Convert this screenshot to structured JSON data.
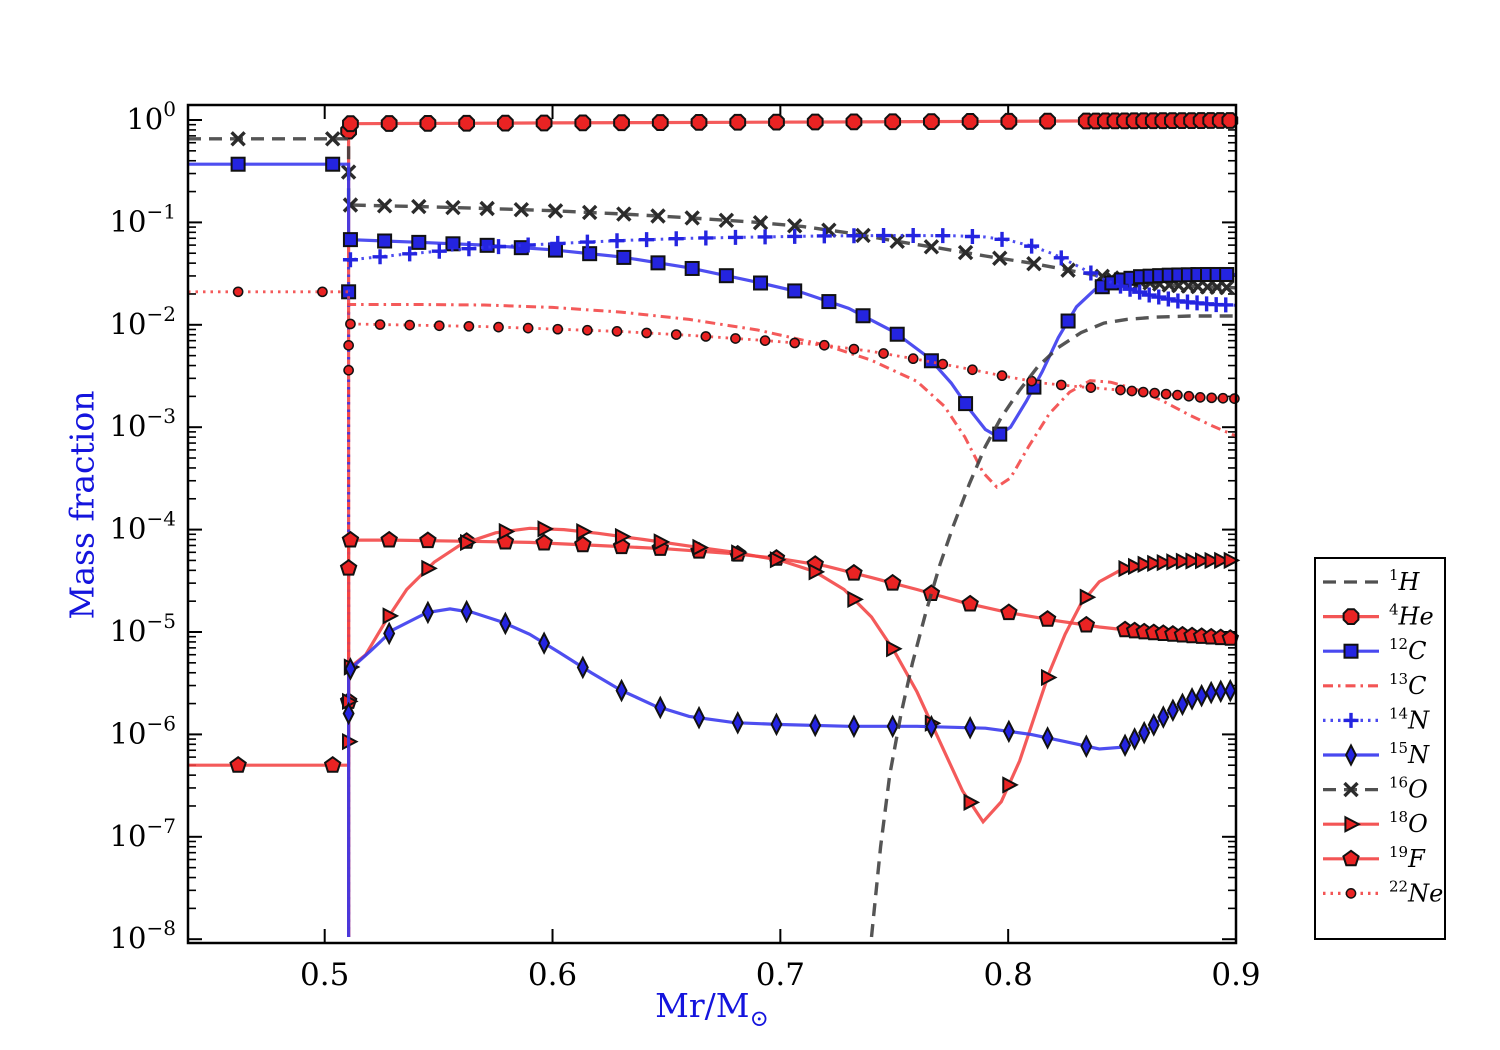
{
  "chart_data": {
    "type": "line",
    "title": "",
    "xlabel_main": "Mr/M",
    "xlabel_sub": "⊙",
    "ylabel": "Mass fraction",
    "label_color": "#1414dd",
    "grid": false,
    "legend_position": "right-outside",
    "x_range": [
      0.44,
      0.9
    ],
    "y_log_range": [
      -8,
      0.146
    ],
    "jump_x": 0.5105,
    "x_ticks": [
      {
        "v": 0.5,
        "label": "0.5"
      },
      {
        "v": 0.6,
        "label": "0.6"
      },
      {
        "v": 0.7,
        "label": "0.7"
      },
      {
        "v": 0.8,
        "label": "0.8"
      },
      {
        "v": 0.9,
        "label": "0.9"
      }
    ],
    "y_tick_exponents": [
      0,
      -1,
      -2,
      -3,
      -4,
      -5,
      -6,
      -7,
      -8
    ],
    "draw_order": [
      "He4",
      "O16",
      "C12",
      "C13",
      "N14",
      "Ne22",
      "F19",
      "O18",
      "N15",
      "H1"
    ],
    "series": [
      {
        "id": "H1",
        "legend_sup": "1",
        "legend_sym": "H",
        "color": "#3d3d3d",
        "marker_color": "#3d3d3d",
        "style": "dashed",
        "marker": "none",
        "width": 3.4,
        "points": [
          [
            0.74,
            1.05e-08
          ],
          [
            0.744,
            8e-08
          ],
          [
            0.748,
            4e-07
          ],
          [
            0.753,
            1.6e-06
          ],
          [
            0.758,
            5e-06
          ],
          [
            0.764,
            1.6e-05
          ],
          [
            0.77,
            4.5e-05
          ],
          [
            0.776,
            0.00011
          ],
          [
            0.783,
            0.00028
          ],
          [
            0.79,
            0.00065
          ],
          [
            0.797,
            0.00125
          ],
          [
            0.805,
            0.0023
          ],
          [
            0.813,
            0.0039
          ],
          [
            0.822,
            0.006
          ],
          [
            0.832,
            0.0084
          ],
          [
            0.842,
            0.0104
          ],
          [
            0.852,
            0.0113
          ],
          [
            0.865,
            0.0119
          ],
          [
            0.88,
            0.0122
          ],
          [
            0.9,
            0.0122
          ]
        ]
      },
      {
        "id": "He4",
        "legend_sup": "4",
        "legend_sym": "He",
        "color": "#f24343",
        "marker_color": "#ea2323",
        "style": "solid",
        "marker": "octagon",
        "width": 3.2,
        "marker_from": 0.5113,
        "marker_spacing": 0.017,
        "dense_from": 0.828,
        "dense_spacing": 0.0042,
        "jump_markers": [
          0.78
        ],
        "points": [
          [
            0.5105,
            1.05e-08
          ],
          [
            0.5105,
            0.92
          ],
          [
            0.53,
            0.924
          ],
          [
            0.56,
            0.929
          ],
          [
            0.6,
            0.936
          ],
          [
            0.64,
            0.943
          ],
          [
            0.68,
            0.95
          ],
          [
            0.72,
            0.957
          ],
          [
            0.76,
            0.964
          ],
          [
            0.8,
            0.971
          ],
          [
            0.84,
            0.979
          ],
          [
            0.87,
            0.985
          ],
          [
            0.9,
            0.99
          ]
        ]
      },
      {
        "id": "C12",
        "legend_sup": "12",
        "legend_sym": "C",
        "color": "#3535ee",
        "marker_color": "#2424e0",
        "style": "solid",
        "marker": "square",
        "width": 3.2,
        "marker_from": 0.5113,
        "marker_spacing": 0.015,
        "dense_from": 0.838,
        "dense_spacing": 0.0042,
        "left_markers": [
          0.462,
          0.5035
        ],
        "jump_markers": [
          0.021
        ],
        "points": [
          [
            0.44,
            0.37
          ],
          [
            0.5105,
            0.37
          ],
          [
            0.5105,
            0.068
          ],
          [
            0.54,
            0.064
          ],
          [
            0.57,
            0.06
          ],
          [
            0.6,
            0.054
          ],
          [
            0.63,
            0.046
          ],
          [
            0.66,
            0.036
          ],
          [
            0.69,
            0.026
          ],
          [
            0.71,
            0.0205
          ],
          [
            0.73,
            0.0145
          ],
          [
            0.75,
            0.0085
          ],
          [
            0.765,
            0.0048
          ],
          [
            0.775,
            0.0027
          ],
          [
            0.783,
            0.0015
          ],
          [
            0.79,
            0.00095
          ],
          [
            0.795,
            0.00082
          ],
          [
            0.801,
            0.001
          ],
          [
            0.808,
            0.0018
          ],
          [
            0.815,
            0.0035
          ],
          [
            0.822,
            0.0075
          ],
          [
            0.83,
            0.015
          ],
          [
            0.838,
            0.022
          ],
          [
            0.848,
            0.027
          ],
          [
            0.858,
            0.0295
          ],
          [
            0.87,
            0.0305
          ],
          [
            0.885,
            0.031
          ],
          [
            0.9,
            0.031
          ]
        ]
      },
      {
        "id": "C13",
        "legend_sup": "13",
        "legend_sym": "C",
        "color": "#f24343",
        "marker_color": "#ea2323",
        "style": "dashdot",
        "marker": "none",
        "width": 3.0,
        "points": [
          [
            0.5105,
            1.05e-08
          ],
          [
            0.5105,
            0.0158
          ],
          [
            0.54,
            0.0158
          ],
          [
            0.57,
            0.0156
          ],
          [
            0.6,
            0.0148
          ],
          [
            0.63,
            0.0133
          ],
          [
            0.66,
            0.0113
          ],
          [
            0.69,
            0.0089
          ],
          [
            0.72,
            0.0063
          ],
          [
            0.74,
            0.0045
          ],
          [
            0.76,
            0.0028
          ],
          [
            0.772,
            0.0016
          ],
          [
            0.781,
            0.0008
          ],
          [
            0.789,
            0.00036
          ],
          [
            0.795,
            0.00026
          ],
          [
            0.801,
            0.00032
          ],
          [
            0.809,
            0.00065
          ],
          [
            0.818,
            0.00135
          ],
          [
            0.827,
            0.0022
          ],
          [
            0.836,
            0.00285
          ],
          [
            0.845,
            0.00275
          ],
          [
            0.856,
            0.00235
          ],
          [
            0.868,
            0.0018
          ],
          [
            0.88,
            0.0013
          ],
          [
            0.89,
            0.00102
          ],
          [
            0.9,
            0.00082
          ]
        ]
      },
      {
        "id": "N14",
        "legend_sup": "14",
        "legend_sym": "N",
        "color": "#3535ee",
        "marker_color": "#2424e0",
        "style": "dotted",
        "marker": "plus",
        "width": 3.0,
        "marker_from": 0.5113,
        "marker_spacing": 0.013,
        "dense_from": 0.842,
        "dense_spacing": 0.0042,
        "points": [
          [
            0.5105,
            1.05e-08
          ],
          [
            0.5105,
            0.043
          ],
          [
            0.54,
            0.05
          ],
          [
            0.57,
            0.057
          ],
          [
            0.6,
            0.062
          ],
          [
            0.63,
            0.0665
          ],
          [
            0.66,
            0.07
          ],
          [
            0.69,
            0.072
          ],
          [
            0.72,
            0.0738
          ],
          [
            0.75,
            0.0745
          ],
          [
            0.775,
            0.0742
          ],
          [
            0.79,
            0.072
          ],
          [
            0.8,
            0.067
          ],
          [
            0.81,
            0.059
          ],
          [
            0.82,
            0.049
          ],
          [
            0.83,
            0.038
          ],
          [
            0.84,
            0.029
          ],
          [
            0.85,
            0.0235
          ],
          [
            0.862,
            0.0195
          ],
          [
            0.875,
            0.017
          ],
          [
            0.89,
            0.0158
          ],
          [
            0.9,
            0.0155
          ]
        ]
      },
      {
        "id": "N15",
        "legend_sup": "15",
        "legend_sym": "N",
        "color": "#3535ee",
        "marker_color": "#2424e0",
        "style": "solid",
        "marker": "diamond",
        "width": 3.2,
        "marker_from": 0.5113,
        "marker_spacing": 0.017,
        "dense_from": 0.848,
        "dense_spacing": 0.0042,
        "jump_markers": [
          1.6e-06
        ],
        "points": [
          [
            0.5105,
            1.05e-08
          ],
          [
            0.5105,
            4.2e-06
          ],
          [
            0.52,
            6.5e-06
          ],
          [
            0.53,
            1.05e-05
          ],
          [
            0.545,
            1.55e-05
          ],
          [
            0.555,
            1.68e-05
          ],
          [
            0.565,
            1.55e-05
          ],
          [
            0.578,
            1.25e-05
          ],
          [
            0.59,
            9.5e-06
          ],
          [
            0.603,
            6.3e-06
          ],
          [
            0.617,
            4e-06
          ],
          [
            0.63,
            2.7e-06
          ],
          [
            0.645,
            1.9e-06
          ],
          [
            0.66,
            1.5e-06
          ],
          [
            0.68,
            1.3e-06
          ],
          [
            0.7,
            1.25e-06
          ],
          [
            0.73,
            1.2e-06
          ],
          [
            0.76,
            1.2e-06
          ],
          [
            0.79,
            1.15e-06
          ],
          [
            0.81,
            1e-06
          ],
          [
            0.825,
            8.5e-07
          ],
          [
            0.84,
            7.2e-07
          ],
          [
            0.85,
            7.5e-07
          ],
          [
            0.86,
            1.05e-06
          ],
          [
            0.87,
            1.6e-06
          ],
          [
            0.88,
            2.2e-06
          ],
          [
            0.89,
            2.6e-06
          ],
          [
            0.9,
            2.7e-06
          ]
        ]
      },
      {
        "id": "O16",
        "legend_sup": "16",
        "legend_sym": "O",
        "color": "#3d3d3d",
        "marker_color": "#2b2b2b",
        "style": "dashed",
        "marker": "x",
        "width": 3.4,
        "marker_from": 0.5113,
        "marker_spacing": 0.015,
        "dense_from": 0.838,
        "dense_spacing": 0.0042,
        "left_markers": [
          0.462,
          0.5035
        ],
        "jump_markers": [
          0.31
        ],
        "points": [
          [
            0.44,
            0.655
          ],
          [
            0.5105,
            0.655
          ],
          [
            0.5105,
            0.148
          ],
          [
            0.54,
            0.143
          ],
          [
            0.57,
            0.137
          ],
          [
            0.6,
            0.13
          ],
          [
            0.63,
            0.121
          ],
          [
            0.66,
            0.111
          ],
          [
            0.69,
            0.1
          ],
          [
            0.71,
            0.091
          ],
          [
            0.73,
            0.079
          ],
          [
            0.75,
            0.066
          ],
          [
            0.77,
            0.056
          ],
          [
            0.79,
            0.047
          ],
          [
            0.81,
            0.04
          ],
          [
            0.83,
            0.033
          ],
          [
            0.85,
            0.0275
          ],
          [
            0.87,
            0.0245
          ],
          [
            0.885,
            0.0235
          ],
          [
            0.9,
            0.023
          ]
        ]
      },
      {
        "id": "O18",
        "legend_sup": "18",
        "legend_sym": "O",
        "color": "#f24343",
        "marker_color": "#ea2323",
        "style": "solid",
        "marker": "triangle-right",
        "width": 3.2,
        "marker_from": 0.5113,
        "marker_spacing": 0.017,
        "dense_from": 0.845,
        "dense_spacing": 0.0042,
        "jump_markers": [
          2.1e-06,
          8.5e-07
        ],
        "points": [
          [
            0.5105,
            1.05e-08
          ],
          [
            0.5105,
            4.4e-06
          ],
          [
            0.518,
            6e-06
          ],
          [
            0.527,
            1.3e-05
          ],
          [
            0.536,
            2.6e-05
          ],
          [
            0.548,
            4.8e-05
          ],
          [
            0.56,
            7.2e-05
          ],
          [
            0.575,
            9.3e-05
          ],
          [
            0.59,
            0.000103
          ],
          [
            0.605,
            0.0001
          ],
          [
            0.62,
            9.2e-05
          ],
          [
            0.64,
            8e-05
          ],
          [
            0.66,
            6.9e-05
          ],
          [
            0.68,
            6e-05
          ],
          [
            0.7,
            5e-05
          ],
          [
            0.715,
            3.9e-05
          ],
          [
            0.728,
            2.6e-05
          ],
          [
            0.74,
            1.4e-05
          ],
          [
            0.75,
            6.5e-06
          ],
          [
            0.76,
            2.6e-06
          ],
          [
            0.77,
            8.5e-07
          ],
          [
            0.78,
            2.8e-07
          ],
          [
            0.789,
            1.4e-07
          ],
          [
            0.797,
            2.2e-07
          ],
          [
            0.805,
            5.5e-07
          ],
          [
            0.812,
            1.6e-06
          ],
          [
            0.818,
            4e-06
          ],
          [
            0.825,
            9.5e-06
          ],
          [
            0.832,
            1.9e-05
          ],
          [
            0.84,
            3.1e-05
          ],
          [
            0.85,
            4.1e-05
          ],
          [
            0.86,
            4.6e-05
          ],
          [
            0.875,
            4.9e-05
          ],
          [
            0.89,
            5e-05
          ],
          [
            0.9,
            5e-05
          ]
        ]
      },
      {
        "id": "F19",
        "legend_sup": "19",
        "legend_sym": "F",
        "color": "#f24343",
        "marker_color": "#ea2323",
        "style": "solid",
        "marker": "pentagon",
        "width": 3.2,
        "marker_from": 0.5113,
        "marker_spacing": 0.017,
        "dense_from": 0.842,
        "dense_spacing": 0.0042,
        "left_markers": [
          0.462,
          0.5035
        ],
        "jump_markers": [
          4.2e-05,
          2.1e-06
        ],
        "points": [
          [
            0.44,
            5e-07
          ],
          [
            0.5105,
            5e-07
          ],
          [
            0.5105,
            7.9e-05
          ],
          [
            0.53,
            7.9e-05
          ],
          [
            0.56,
            7.7e-05
          ],
          [
            0.59,
            7.5e-05
          ],
          [
            0.62,
            7e-05
          ],
          [
            0.65,
            6.5e-05
          ],
          [
            0.68,
            5.8e-05
          ],
          [
            0.7,
            5.2e-05
          ],
          [
            0.72,
            4.4e-05
          ],
          [
            0.74,
            3.4e-05
          ],
          [
            0.76,
            2.6e-05
          ],
          [
            0.78,
            1.95e-05
          ],
          [
            0.8,
            1.55e-05
          ],
          [
            0.82,
            1.3e-05
          ],
          [
            0.84,
            1.12e-05
          ],
          [
            0.86,
            1e-05
          ],
          [
            0.88,
            9.2e-06
          ],
          [
            0.9,
            8.6e-06
          ]
        ]
      },
      {
        "id": "Ne22",
        "legend_sup": "22",
        "legend_sym": "Ne",
        "color": "#f24343",
        "marker_color": "#ea2323",
        "style": "dotted",
        "marker": "dot",
        "width": 2.8,
        "marker_from": 0.5113,
        "marker_spacing": 0.013,
        "dense_from": 0.84,
        "dense_spacing": 0.005,
        "left_markers": [
          0.462,
          0.499
        ],
        "jump_markers": [
          0.0063,
          0.0036
        ],
        "points": [
          [
            0.44,
            0.021
          ],
          [
            0.5105,
            0.021
          ],
          [
            0.5105,
            0.0102
          ],
          [
            0.54,
            0.0099
          ],
          [
            0.57,
            0.0096
          ],
          [
            0.6,
            0.0091
          ],
          [
            0.63,
            0.0086
          ],
          [
            0.66,
            0.0079
          ],
          [
            0.69,
            0.0071
          ],
          [
            0.72,
            0.0063
          ],
          [
            0.74,
            0.0055
          ],
          [
            0.76,
            0.0046
          ],
          [
            0.78,
            0.0038
          ],
          [
            0.8,
            0.0031
          ],
          [
            0.815,
            0.0027
          ],
          [
            0.83,
            0.0025
          ],
          [
            0.85,
            0.0023
          ],
          [
            0.87,
            0.0021
          ],
          [
            0.885,
            0.00195
          ],
          [
            0.9,
            0.0019
          ]
        ]
      }
    ]
  }
}
